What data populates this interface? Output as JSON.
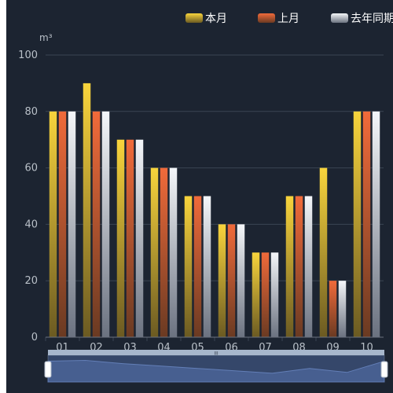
{
  "chart_data": {
    "type": "bar",
    "y_unit": "m³",
    "ylim": [
      0,
      100
    ],
    "y_ticks": [
      "0",
      "20",
      "40",
      "60",
      "80",
      "100"
    ],
    "categories": [
      "01",
      "02",
      "03",
      "04",
      "05",
      "06",
      "07",
      "08",
      "09",
      "10"
    ],
    "series": [
      {
        "name": "本月",
        "values": [
          80,
          90,
          70,
          60,
          50,
          40,
          30,
          50,
          60,
          80
        ]
      },
      {
        "name": "上月",
        "values": [
          80,
          80,
          70,
          60,
          50,
          40,
          30,
          50,
          20,
          80
        ]
      },
      {
        "name": "去年同期",
        "values": [
          80,
          80,
          70,
          60,
          50,
          40,
          30,
          50,
          20,
          80
        ]
      }
    ],
    "legend_position": "top-right",
    "grid": true,
    "data_zoom": {
      "start_fraction": 0,
      "end_fraction": 1,
      "handle_label": "III"
    }
  },
  "colors": {
    "background": "#1c2431",
    "grid": "#3a4453",
    "axis_text": "#b9c0c8",
    "series_gradients": [
      [
        "#f8d43c",
        "#6b5a22"
      ],
      [
        "#f06a3a",
        "#6a3a22"
      ],
      [
        "#f4f6f9",
        "#6b7280"
      ]
    ]
  }
}
